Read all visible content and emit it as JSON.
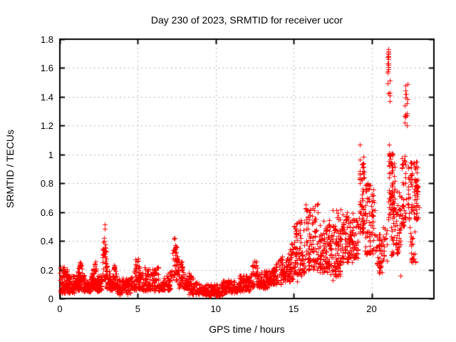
{
  "chart_data": {
    "type": "scatter",
    "title": "Day 230 of 2023, SRMTID for receiver ucor",
    "xlabel": "GPS time / hours",
    "ylabel": "SRMTID / TECUs",
    "xlim": [
      0,
      24
    ],
    "ylim": [
      0,
      1.8
    ],
    "xticks": {
      "values": [
        0,
        5,
        10,
        15,
        20
      ],
      "labels": [
        "0",
        "5",
        "10",
        "15",
        "20"
      ]
    },
    "yticks": {
      "values": [
        0,
        0.2,
        0.4,
        0.6,
        0.8,
        1.0,
        1.2,
        1.4,
        1.6,
        1.8
      ],
      "labels": [
        "0",
        "0.2",
        "0.4",
        "0.6",
        "0.8",
        "1",
        "1.2",
        "1.4",
        "1.6",
        "1.8"
      ]
    },
    "grid": {
      "show": true,
      "style": "dashed",
      "at": "major-ticks"
    },
    "legend": {
      "show": false
    },
    "marker": {
      "symbol": "plus",
      "size": 7,
      "color": "#ff0000"
    },
    "point_bands": [
      {
        "x0": 0.0,
        "x1": 0.5,
        "y0": 0.04,
        "y1": 0.22,
        "n": 90,
        "shape": "flat"
      },
      {
        "x0": 0.5,
        "x1": 0.95,
        "y0": 0.04,
        "y1": 0.16,
        "n": 70,
        "shape": "flat"
      },
      {
        "x0": 0.95,
        "x1": 1.45,
        "y0": 0.06,
        "y1": 0.32,
        "n": 80,
        "shape": "up"
      },
      {
        "x0": 1.45,
        "x1": 1.95,
        "y0": 0.05,
        "y1": 0.18,
        "n": 75,
        "shape": "down"
      },
      {
        "x0": 1.95,
        "x1": 2.35,
        "y0": 0.07,
        "y1": 0.3,
        "n": 70,
        "shape": "up"
      },
      {
        "x0": 2.35,
        "x1": 2.7,
        "y0": 0.05,
        "y1": 0.16,
        "n": 55,
        "shape": "flat"
      },
      {
        "x0": 2.72,
        "x1": 3.0,
        "y0": 0.12,
        "y1": 0.55,
        "n": 45,
        "shape": "hump"
      },
      {
        "x0": 3.0,
        "x1": 3.35,
        "y0": 0.06,
        "y1": 0.28,
        "n": 55,
        "shape": "down"
      },
      {
        "x0": 3.35,
        "x1": 3.65,
        "y0": 0.07,
        "y1": 0.24,
        "n": 45,
        "shape": "hump"
      },
      {
        "x0": 3.65,
        "x1": 4.55,
        "y0": 0.03,
        "y1": 0.14,
        "n": 110,
        "shape": "flat"
      },
      {
        "x0": 4.55,
        "x1": 5.3,
        "y0": 0.06,
        "y1": 0.3,
        "n": 90,
        "shape": "hump"
      },
      {
        "x0": 5.3,
        "x1": 6.35,
        "y0": 0.05,
        "y1": 0.22,
        "n": 110,
        "shape": "flat"
      },
      {
        "x0": 6.35,
        "x1": 7.1,
        "y0": 0.06,
        "y1": 0.2,
        "n": 80,
        "shape": "up"
      },
      {
        "x0": 7.15,
        "x1": 7.6,
        "y0": 0.12,
        "y1": 0.47,
        "n": 55,
        "shape": "hump"
      },
      {
        "x0": 7.6,
        "x1": 8.25,
        "y0": 0.07,
        "y1": 0.33,
        "n": 75,
        "shape": "down"
      },
      {
        "x0": 8.25,
        "x1": 9.3,
        "y0": 0.03,
        "y1": 0.18,
        "n": 100,
        "shape": "down"
      },
      {
        "x0": 9.3,
        "x1": 10.4,
        "y0": 0.02,
        "y1": 0.1,
        "n": 110,
        "shape": "flat"
      },
      {
        "x0": 10.4,
        "x1": 11.5,
        "y0": 0.04,
        "y1": 0.13,
        "n": 110,
        "shape": "flat"
      },
      {
        "x0": 11.5,
        "x1": 12.2,
        "y0": 0.05,
        "y1": 0.16,
        "n": 80,
        "shape": "flat"
      },
      {
        "x0": 12.2,
        "x1": 12.8,
        "y0": 0.08,
        "y1": 0.28,
        "n": 70,
        "shape": "hump"
      },
      {
        "x0": 12.8,
        "x1": 13.4,
        "y0": 0.07,
        "y1": 0.2,
        "n": 70,
        "shape": "flat"
      },
      {
        "x0": 13.4,
        "x1": 14.3,
        "y0": 0.1,
        "y1": 0.33,
        "n": 90,
        "shape": "up"
      },
      {
        "x0": 14.3,
        "x1": 15.0,
        "y0": 0.12,
        "y1": 0.42,
        "n": 90,
        "shape": "up"
      },
      {
        "x0": 15.0,
        "x1": 15.7,
        "y0": 0.16,
        "y1": 0.55,
        "n": 90,
        "shape": "flat"
      },
      {
        "x0": 15.7,
        "x1": 16.6,
        "y0": 0.2,
        "y1": 0.66,
        "n": 100,
        "shape": "flat"
      },
      {
        "x0": 16.6,
        "x1": 17.3,
        "y0": 0.18,
        "y1": 0.55,
        "n": 90,
        "shape": "flat"
      },
      {
        "x0": 17.3,
        "x1": 18.0,
        "y0": 0.15,
        "y1": 0.62,
        "n": 90,
        "shape": "flat"
      },
      {
        "x0": 18.0,
        "x1": 18.8,
        "y0": 0.25,
        "y1": 0.6,
        "n": 100,
        "shape": "flat"
      },
      {
        "x0": 18.8,
        "x1": 19.15,
        "y0": 0.28,
        "y1": 0.55,
        "n": 40,
        "shape": "flat"
      },
      {
        "x0": 19.2,
        "x1": 19.55,
        "y0": 0.45,
        "y1": 1.0,
        "n": 60,
        "shape": "column"
      },
      {
        "x0": 19.55,
        "x1": 20.2,
        "y0": 0.3,
        "y1": 0.8,
        "n": 80,
        "shape": "flat"
      },
      {
        "x0": 20.25,
        "x1": 20.65,
        "y0": 0.17,
        "y1": 0.45,
        "n": 40,
        "shape": "flat"
      },
      {
        "x0": 20.7,
        "x1": 21.0,
        "y0": 0.25,
        "y1": 0.5,
        "n": 18,
        "shape": "flat"
      },
      {
        "x0": 21.0,
        "x1": 21.15,
        "y0": 1.55,
        "y1": 1.73,
        "n": 16,
        "shape": "column"
      },
      {
        "x0": 21.0,
        "x1": 21.2,
        "y0": 1.3,
        "y1": 1.55,
        "n": 6,
        "shape": "column"
      },
      {
        "x0": 21.05,
        "x1": 21.5,
        "y0": 0.55,
        "y1": 1.02,
        "n": 70,
        "shape": "column"
      },
      {
        "x0": 21.2,
        "x1": 21.9,
        "y0": 0.3,
        "y1": 0.75,
        "n": 70,
        "shape": "flat"
      },
      {
        "x0": 21.9,
        "x1": 22.2,
        "y0": 0.5,
        "y1": 1.0,
        "n": 40,
        "shape": "flat"
      },
      {
        "x0": 22.1,
        "x1": 22.35,
        "y0": 1.2,
        "y1": 1.5,
        "n": 18,
        "shape": "column"
      },
      {
        "x0": 22.3,
        "x1": 23.0,
        "y0": 0.55,
        "y1": 0.95,
        "n": 80,
        "shape": "flat"
      },
      {
        "x0": 22.4,
        "x1": 22.8,
        "y0": 0.25,
        "y1": 0.5,
        "n": 25,
        "shape": "flat"
      },
      {
        "x0": 22.85,
        "x1": 23.05,
        "y0": 0.6,
        "y1": 0.8,
        "n": 15,
        "shape": "column"
      }
    ],
    "outlier_points": [
      {
        "x": 19.25,
        "y": 1.07
      },
      {
        "x": 21.1,
        "y": 1.07
      },
      {
        "x": 15.2,
        "y": 0.12
      },
      {
        "x": 17.5,
        "y": 0.13
      },
      {
        "x": 20.5,
        "y": 0.18
      },
      {
        "x": 21.85,
        "y": 0.16
      }
    ]
  },
  "colors": {
    "marker": "#ff0000",
    "grid": "#b3b3b3",
    "border": "#000000",
    "text": "#000000",
    "background": "#ffffff"
  }
}
